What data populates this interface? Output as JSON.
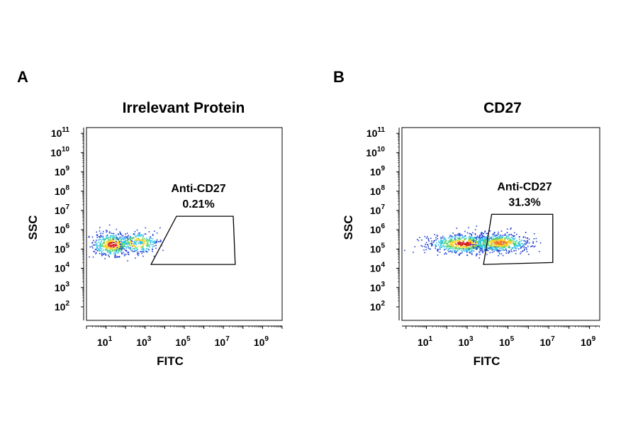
{
  "chart_data": [
    {
      "type": "scatter",
      "panel_label": "A",
      "title": "Irrelevant Protein",
      "xlabel": "FITC",
      "ylabel": "SSC",
      "x_scale": "log",
      "y_scale": "log",
      "xlim_exp": [
        0,
        10
      ],
      "ylim_exp": [
        1.3,
        11.3
      ],
      "x_ticks": [
        {
          "base": "10",
          "exp": "1",
          "value_exp": 1
        },
        {
          "base": "10",
          "exp": "3",
          "value_exp": 3
        },
        {
          "base": "10",
          "exp": "5",
          "value_exp": 5
        },
        {
          "base": "10",
          "exp": "7",
          "value_exp": 7
        },
        {
          "base": "10",
          "exp": "9",
          "value_exp": 9
        }
      ],
      "y_ticks": [
        {
          "base": "10",
          "exp": "2",
          "value_exp": 2
        },
        {
          "base": "10",
          "exp": "3",
          "value_exp": 3
        },
        {
          "base": "10",
          "exp": "4",
          "value_exp": 4
        },
        {
          "base": "10",
          "exp": "5",
          "value_exp": 5
        },
        {
          "base": "10",
          "exp": "6",
          "value_exp": 6
        },
        {
          "base": "10",
          "exp": "7",
          "value_exp": 7
        },
        {
          "base": "10",
          "exp": "8",
          "value_exp": 8
        },
        {
          "base": "10",
          "exp": "9",
          "value_exp": 9
        },
        {
          "base": "10",
          "exp": "10",
          "value_exp": 10
        },
        {
          "base": "10",
          "exp": "11",
          "value_exp": 11
        }
      ],
      "gate": {
        "name": "Anti-CD27",
        "percent": "0.21%",
        "vertices_log10": [
          [
            3.3,
            4.2
          ],
          [
            4.6,
            6.7
          ],
          [
            7.5,
            6.7
          ],
          [
            7.6,
            4.2
          ]
        ]
      },
      "populations": [
        {
          "center_log10": [
            1.3,
            5.25
          ],
          "spread_log10": [
            0.55,
            0.32
          ],
          "count": 500,
          "peak": "#d81b1b"
        },
        {
          "center_log10": [
            2.6,
            5.35
          ],
          "spread_log10": [
            0.55,
            0.28
          ],
          "count": 300,
          "peak": "#2ec4e8"
        }
      ],
      "grid": false,
      "legend": "none"
    },
    {
      "type": "scatter",
      "panel_label": "B",
      "title": "CD27",
      "xlabel": "FITC",
      "ylabel": "SSC",
      "x_scale": "log",
      "y_scale": "log",
      "xlim_exp": [
        -0.2,
        9.5
      ],
      "ylim_exp": [
        1.3,
        11.3
      ],
      "x_ticks": [
        {
          "base": "10",
          "exp": "1",
          "value_exp": 1
        },
        {
          "base": "10",
          "exp": "3",
          "value_exp": 3
        },
        {
          "base": "10",
          "exp": "5",
          "value_exp": 5
        },
        {
          "base": "10",
          "exp": "7",
          "value_exp": 7
        },
        {
          "base": "10",
          "exp": "9",
          "value_exp": 9
        }
      ],
      "y_ticks": [
        {
          "base": "10",
          "exp": "2",
          "value_exp": 2
        },
        {
          "base": "10",
          "exp": "3",
          "value_exp": 3
        },
        {
          "base": "10",
          "exp": "4",
          "value_exp": 4
        },
        {
          "base": "10",
          "exp": "5",
          "value_exp": 5
        },
        {
          "base": "10",
          "exp": "6",
          "value_exp": 6
        },
        {
          "base": "10",
          "exp": "7",
          "value_exp": 7
        },
        {
          "base": "10",
          "exp": "8",
          "value_exp": 8
        },
        {
          "base": "10",
          "exp": "9",
          "value_exp": 9
        },
        {
          "base": "10",
          "exp": "10",
          "value_exp": 10
        },
        {
          "base": "10",
          "exp": "11",
          "value_exp": 11
        }
      ],
      "gate": {
        "name": "Anti-CD27",
        "percent": "31.3%",
        "vertices_log10": [
          [
            3.8,
            4.2
          ],
          [
            4.2,
            6.8
          ],
          [
            7.2,
            6.8
          ],
          [
            7.2,
            4.3
          ]
        ]
      },
      "populations": [
        {
          "center_log10": [
            2.8,
            5.3
          ],
          "spread_log10": [
            0.9,
            0.26
          ],
          "count": 700,
          "peak": "#d81b1b"
        },
        {
          "center_log10": [
            4.6,
            5.35
          ],
          "spread_log10": [
            0.75,
            0.24
          ],
          "count": 600,
          "peak": "#f07a1e"
        }
      ],
      "grid": false,
      "legend": "none"
    }
  ]
}
